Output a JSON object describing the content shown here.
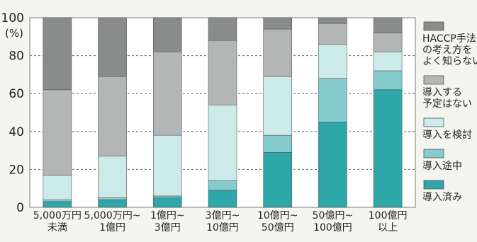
{
  "chart_data": {
    "type": "bar",
    "stacked": true,
    "ylabel": "(%)",
    "ylim": [
      0,
      100
    ],
    "yticks": [
      0,
      20,
      40,
      60,
      80,
      100
    ],
    "grid": "horizontal dashed",
    "legend_position": "right",
    "categories": [
      [
        "5,000万円",
        "未満"
      ],
      [
        "5,000万円~",
        "1億円"
      ],
      [
        "1億円~",
        "3億円"
      ],
      [
        "3億円~",
        "10億円"
      ],
      [
        "10億円~",
        "50億円"
      ],
      [
        "50億円~",
        "100億円"
      ],
      [
        "100億円",
        "以上"
      ]
    ],
    "series": [
      {
        "name": [
          "導入済み"
        ],
        "color": "#2ea7a8",
        "values": [
          3,
          4,
          5,
          9,
          29,
          45,
          62
        ]
      },
      {
        "name": [
          "導入途中"
        ],
        "color": "#86ccce",
        "values": [
          1,
          1,
          1,
          5,
          9,
          23,
          10
        ]
      },
      {
        "name": [
          "導入を検討"
        ],
        "color": "#cdeaeb",
        "values": [
          13,
          22,
          32,
          40,
          31,
          18,
          10
        ]
      },
      {
        "name": [
          "導入する",
          "予定はない"
        ],
        "color": "#b4b6b6",
        "values": [
          45,
          42,
          44,
          34,
          25,
          11,
          10
        ]
      },
      {
        "name": [
          "HACCP手法",
          "の考え方を",
          "よく知らない"
        ],
        "color": "#8a8c8c",
        "values": [
          38,
          31,
          18,
          12,
          6,
          3,
          8
        ]
      }
    ]
  }
}
